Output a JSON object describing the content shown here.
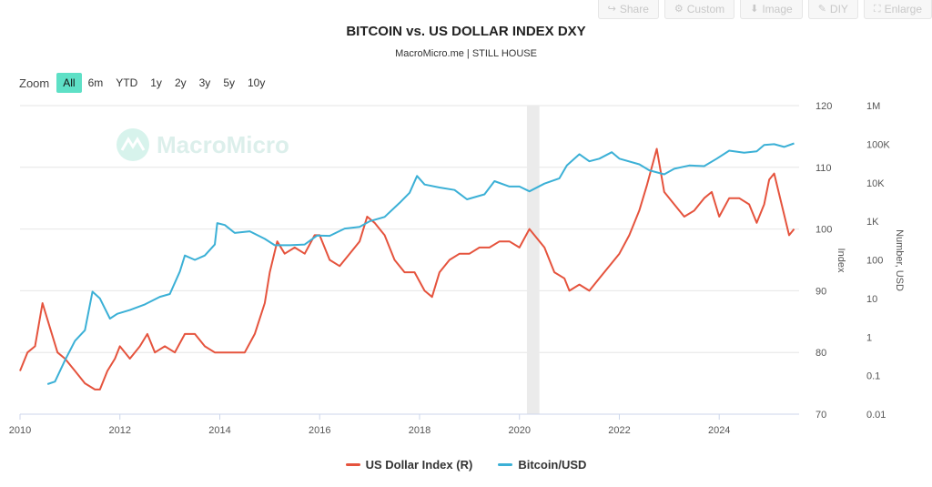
{
  "toolbar": [
    {
      "label": "Share",
      "icon": "share-icon",
      "glyph": "↪"
    },
    {
      "label": "Custom",
      "icon": "gear-icon",
      "glyph": "⚙"
    },
    {
      "label": "Image",
      "icon": "download-icon",
      "glyph": "⬇"
    },
    {
      "label": "DIY",
      "icon": "pencil-icon",
      "glyph": "✎"
    },
    {
      "label": "Enlarge",
      "icon": "expand-icon",
      "glyph": "⛶"
    }
  ],
  "zoom": {
    "label": "Zoom",
    "options": [
      "All",
      "6m",
      "YTD",
      "1y",
      "2y",
      "3y",
      "5y",
      "10y"
    ],
    "selected": "All"
  },
  "watermark": "MacroMicro",
  "chart_data": {
    "type": "line",
    "title": "BITCOIN vs. US DOLLAR INDEX DXY",
    "subtitle": "MacroMicro.me | STILL HOUSE",
    "x_ticks": [
      "2010",
      "2012",
      "2014",
      "2016",
      "2018",
      "2020",
      "2022",
      "2024"
    ],
    "x_range": [
      2010,
      2025.6
    ],
    "y_right1": {
      "label": "Index",
      "range": [
        70,
        120
      ],
      "ticks": [
        "70",
        "80",
        "90",
        "100",
        "110",
        "120"
      ]
    },
    "y_right2": {
      "label": "Number, USD",
      "range_log10": [
        -2,
        6
      ],
      "ticks": [
        "0.01",
        "0.1",
        "1",
        "10",
        "100",
        "1K",
        "10K",
        "100K",
        "1M"
      ]
    },
    "shaded_region": [
      2020.15,
      2020.4
    ],
    "series": [
      {
        "name": "US Dollar Index (R)",
        "color": "#e5533d",
        "axis": "index",
        "points": [
          [
            2010.0,
            77
          ],
          [
            2010.15,
            80
          ],
          [
            2010.3,
            81
          ],
          [
            2010.45,
            88
          ],
          [
            2010.6,
            84
          ],
          [
            2010.75,
            80
          ],
          [
            2010.9,
            79
          ],
          [
            2011.1,
            77
          ],
          [
            2011.3,
            75
          ],
          [
            2011.5,
            74
          ],
          [
            2011.6,
            74
          ],
          [
            2011.75,
            77
          ],
          [
            2011.9,
            79
          ],
          [
            2012.0,
            81
          ],
          [
            2012.2,
            79
          ],
          [
            2012.4,
            81
          ],
          [
            2012.55,
            83
          ],
          [
            2012.7,
            80
          ],
          [
            2012.9,
            81
          ],
          [
            2013.1,
            80
          ],
          [
            2013.3,
            83
          ],
          [
            2013.5,
            83
          ],
          [
            2013.7,
            81
          ],
          [
            2013.9,
            80
          ],
          [
            2014.1,
            80
          ],
          [
            2014.3,
            80
          ],
          [
            2014.5,
            80
          ],
          [
            2014.7,
            83
          ],
          [
            2014.9,
            88
          ],
          [
            2015.0,
            93
          ],
          [
            2015.15,
            98
          ],
          [
            2015.3,
            96
          ],
          [
            2015.5,
            97
          ],
          [
            2015.7,
            96
          ],
          [
            2015.9,
            99
          ],
          [
            2016.0,
            99
          ],
          [
            2016.2,
            95
          ],
          [
            2016.4,
            94
          ],
          [
            2016.6,
            96
          ],
          [
            2016.8,
            98
          ],
          [
            2016.95,
            102
          ],
          [
            2017.1,
            101
          ],
          [
            2017.3,
            99
          ],
          [
            2017.5,
            95
          ],
          [
            2017.7,
            93
          ],
          [
            2017.9,
            93
          ],
          [
            2018.1,
            90
          ],
          [
            2018.25,
            89
          ],
          [
            2018.4,
            93
          ],
          [
            2018.6,
            95
          ],
          [
            2018.8,
            96
          ],
          [
            2019.0,
            96
          ],
          [
            2019.2,
            97
          ],
          [
            2019.4,
            97
          ],
          [
            2019.6,
            98
          ],
          [
            2019.8,
            98
          ],
          [
            2020.0,
            97
          ],
          [
            2020.2,
            100
          ],
          [
            2020.3,
            99
          ],
          [
            2020.5,
            97
          ],
          [
            2020.7,
            93
          ],
          [
            2020.9,
            92
          ],
          [
            2021.0,
            90
          ],
          [
            2021.2,
            91
          ],
          [
            2021.4,
            90
          ],
          [
            2021.6,
            92
          ],
          [
            2021.8,
            94
          ],
          [
            2022.0,
            96
          ],
          [
            2022.2,
            99
          ],
          [
            2022.4,
            103
          ],
          [
            2022.55,
            107
          ],
          [
            2022.75,
            113
          ],
          [
            2022.9,
            106
          ],
          [
            2023.1,
            104
          ],
          [
            2023.3,
            102
          ],
          [
            2023.5,
            103
          ],
          [
            2023.7,
            105
          ],
          [
            2023.85,
            106
          ],
          [
            2024.0,
            102
          ],
          [
            2024.2,
            105
          ],
          [
            2024.4,
            105
          ],
          [
            2024.6,
            104
          ],
          [
            2024.75,
            101
          ],
          [
            2024.9,
            104
          ],
          [
            2025.0,
            108
          ],
          [
            2025.1,
            109
          ],
          [
            2025.25,
            104
          ],
          [
            2025.4,
            99
          ],
          [
            2025.5,
            100
          ]
        ]
      },
      {
        "name": "Bitcoin/USD",
        "color": "#3bb0d6",
        "axis": "usd",
        "points": [
          [
            2010.55,
            0.06
          ],
          [
            2010.7,
            0.07
          ],
          [
            2010.9,
            0.25
          ],
          [
            2011.1,
            0.8
          ],
          [
            2011.3,
            1.5
          ],
          [
            2011.45,
            15
          ],
          [
            2011.6,
            10
          ],
          [
            2011.8,
            3
          ],
          [
            2011.95,
            4
          ],
          [
            2012.2,
            5
          ],
          [
            2012.5,
            7
          ],
          [
            2012.8,
            11
          ],
          [
            2013.0,
            13
          ],
          [
            2013.2,
            50
          ],
          [
            2013.3,
            130
          ],
          [
            2013.5,
            100
          ],
          [
            2013.7,
            130
          ],
          [
            2013.9,
            250
          ],
          [
            2013.95,
            900
          ],
          [
            2014.1,
            800
          ],
          [
            2014.3,
            500
          ],
          [
            2014.6,
            550
          ],
          [
            2014.9,
            350
          ],
          [
            2015.1,
            240
          ],
          [
            2015.4,
            240
          ],
          [
            2015.7,
            250
          ],
          [
            2015.95,
            430
          ],
          [
            2016.2,
            420
          ],
          [
            2016.5,
            650
          ],
          [
            2016.8,
            720
          ],
          [
            2017.0,
            1000
          ],
          [
            2017.3,
            1300
          ],
          [
            2017.6,
            3000
          ],
          [
            2017.8,
            5500
          ],
          [
            2017.95,
            15000
          ],
          [
            2018.1,
            9000
          ],
          [
            2018.4,
            7500
          ],
          [
            2018.7,
            6500
          ],
          [
            2018.95,
            3700
          ],
          [
            2019.3,
            5000
          ],
          [
            2019.5,
            11000
          ],
          [
            2019.8,
            8000
          ],
          [
            2020.0,
            8000
          ],
          [
            2020.2,
            6000
          ],
          [
            2020.5,
            9500
          ],
          [
            2020.8,
            13000
          ],
          [
            2020.95,
            28000
          ],
          [
            2021.2,
            55000
          ],
          [
            2021.4,
            36000
          ],
          [
            2021.6,
            42000
          ],
          [
            2021.85,
            62000
          ],
          [
            2022.0,
            42000
          ],
          [
            2022.4,
            30000
          ],
          [
            2022.6,
            21000
          ],
          [
            2022.9,
            16500
          ],
          [
            2023.1,
            23000
          ],
          [
            2023.4,
            28000
          ],
          [
            2023.7,
            27000
          ],
          [
            2023.95,
            42000
          ],
          [
            2024.2,
            68000
          ],
          [
            2024.5,
            60000
          ],
          [
            2024.75,
            65000
          ],
          [
            2024.9,
            95000
          ],
          [
            2025.1,
            100000
          ],
          [
            2025.3,
            85000
          ],
          [
            2025.5,
            105000
          ]
        ]
      }
    ]
  }
}
